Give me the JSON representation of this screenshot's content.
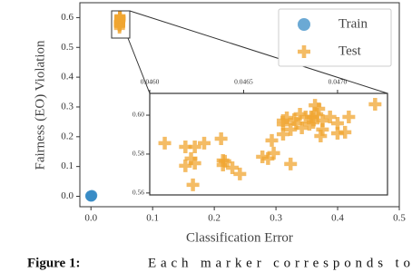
{
  "chart_data": [
    {
      "type": "scatter",
      "xlabel": "Classification Error",
      "ylabel": "Fairness (EO) Violation",
      "xlim": [
        -0.018,
        0.5
      ],
      "ylim": [
        -0.035,
        0.65
      ],
      "xticks": [
        {
          "value": 0,
          "label": "0.0"
        },
        {
          "value": 0.1,
          "label": "0.1"
        },
        {
          "value": 0.2,
          "label": "0.2"
        },
        {
          "value": 0.3,
          "label": "0.3"
        },
        {
          "value": 0.4,
          "label": "0.4"
        },
        {
          "value": 0.5,
          "label": "0.5"
        }
      ],
      "yticks": [
        {
          "value": 0,
          "label": "0.0"
        },
        {
          "value": 0.1,
          "label": "0.1"
        },
        {
          "value": 0.2,
          "label": "0.2"
        },
        {
          "value": 0.3,
          "label": "0.3"
        },
        {
          "value": 0.4,
          "label": "0.4"
        },
        {
          "value": 0.5,
          "label": "0.5"
        },
        {
          "value": 0.6,
          "label": "0.6"
        }
      ],
      "legend": "upper right",
      "series": [
        {
          "name": "Train",
          "color": "#3a8cc6",
          "marker": "circle",
          "x": [
            0.0,
            0.001,
            0.0005,
            0.0015,
            -0.0005
          ],
          "values": [
            0.001,
            0.002,
            0.0,
            0.003,
            0.001
          ]
        },
        {
          "name": "Test",
          "color": "#f0a632",
          "marker": "plus",
          "x": [
            0.04608,
            0.04619,
            0.04624,
            0.04629,
            0.04638,
            0.04619,
            0.04624,
            0.04622,
            0.04639,
            0.04639,
            0.0464,
            0.04644,
            0.04648,
            0.04623,
            0.0466,
            0.04663,
            0.04666,
            0.04675,
            0.04665,
            0.04671,
            0.04671,
            0.04671,
            0.04673,
            0.04675,
            0.04677,
            0.0468,
            0.04681,
            0.04685,
            0.0469,
            0.04692,
            0.04686,
            0.04687,
            0.04689,
            0.04687,
            0.04691,
            0.04692,
            0.04696,
            0.047,
            0.047,
            0.04704,
            0.04706,
            0.0472,
            0.04683,
            0.04678,
            0.04688
          ],
          "values": [
            0.5856,
            0.5837,
            0.5837,
            0.5856,
            0.5879,
            0.574,
            0.5753,
            0.5777,
            0.5767,
            0.5744,
            0.5763,
            0.573,
            0.5698,
            0.5642,
            0.5786,
            0.5777,
            0.5805,
            0.5749,
            0.587,
            0.5902,
            0.5972,
            0.5953,
            0.5986,
            0.5926,
            0.5977,
            0.6005,
            0.5935,
            0.5953,
            0.6033,
            0.5972,
            0.5991,
            0.5991,
            0.6005,
            0.5963,
            0.5893,
            0.5926,
            0.5991,
            0.5958,
            0.5907,
            0.5912,
            0.5991,
            0.6056,
            0.5991,
            0.5958,
            0.6051
          ]
        }
      ]
    },
    {
      "type": "scatter",
      "xlim": [
        0.046,
        0.047266
      ],
      "ylim": [
        0.559,
        0.6112
      ],
      "xticks": [
        {
          "value": 0.046,
          "label": "0.0460"
        },
        {
          "value": 0.0465,
          "label": "0.0465"
        },
        {
          "value": 0.047,
          "label": "0.0470"
        }
      ],
      "yticks": [
        0.56,
        0.58,
        {
          "value": 0.6,
          "label": "0.60"
        }
      ]
    }
  ],
  "caption": {
    "label": "Figure 1:",
    "text": "Each marker corresponds to"
  }
}
